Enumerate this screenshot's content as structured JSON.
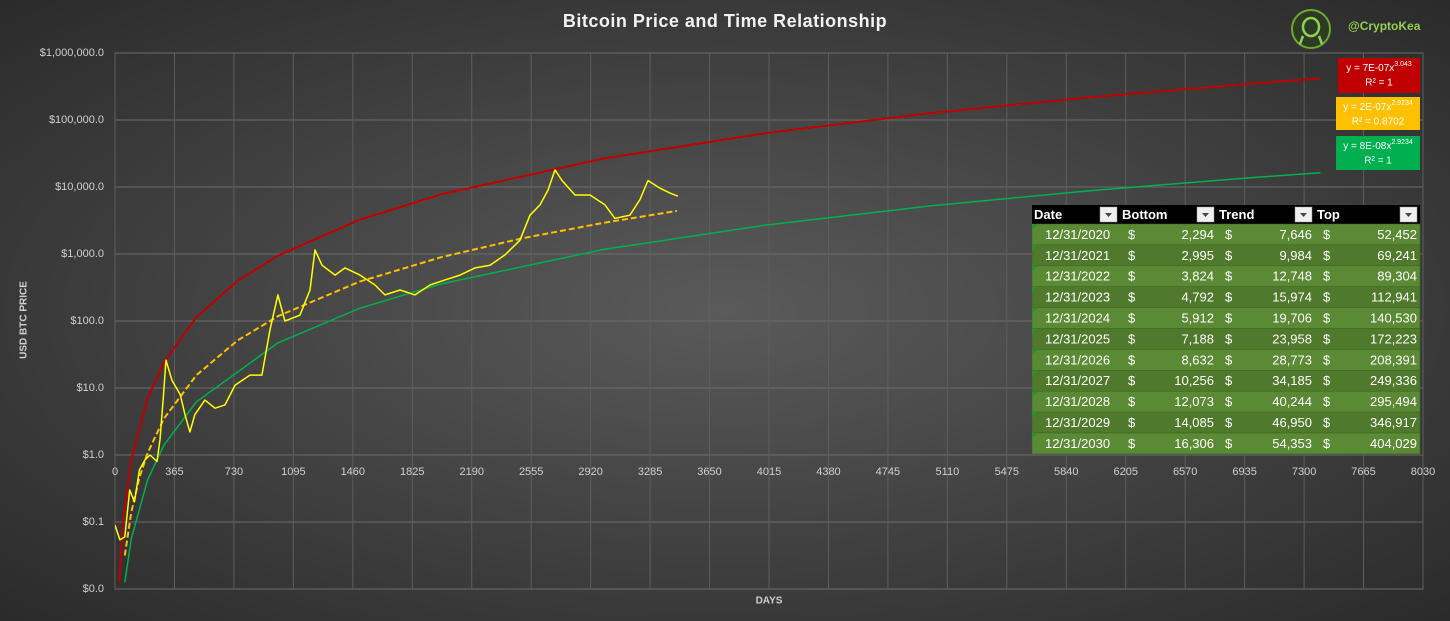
{
  "brand": "@CryptoKea",
  "chart_data": {
    "type": "line",
    "title": "Bitcoin Price and Time Relationship",
    "x_label": "DAYS",
    "y_label": "USD BTC PRICE",
    "log_y": true,
    "grid": true,
    "xlim": [
      0,
      8030
    ],
    "xticks": [
      0,
      365,
      730,
      1095,
      1460,
      1825,
      2190,
      2555,
      2920,
      3285,
      3650,
      4015,
      4380,
      4745,
      5110,
      5475,
      5840,
      6205,
      6570,
      6935,
      7300,
      7665,
      8030
    ],
    "ylim": [
      0.01,
      1000000
    ],
    "yticks": [
      {
        "value": 0.01,
        "label": "$0.0"
      },
      {
        "value": 0.1,
        "label": "$0.1"
      },
      {
        "value": 1,
        "label": "$1.0"
      },
      {
        "value": 10,
        "label": "$10.0"
      },
      {
        "value": 100,
        "label": "$100.0"
      },
      {
        "value": 1000,
        "label": "$1,000.0"
      },
      {
        "value": 10000,
        "label": "$10,000.0"
      },
      {
        "value": 100000,
        "label": "$100,000.0"
      },
      {
        "value": 1000000,
        "label": "$1,000,000.0"
      }
    ],
    "series": [
      {
        "color": "#c00000",
        "dashed": false,
        "width": 2,
        "x": [
          25,
          50,
          100,
          200,
          300,
          500,
          750,
          1000,
          1500,
          2000,
          3000,
          4000,
          5000,
          6000,
          7000,
          7400
        ],
        "values": [
          0.0126,
          0.104,
          0.853,
          7.03,
          24.2,
          114,
          393,
          942,
          3235,
          7764,
          26670,
          63980,
          126200,
          219800,
          351400,
          415800
        ]
      },
      {
        "color": "#00b050",
        "dashed": false,
        "width": 1.5,
        "x": [
          60,
          100,
          200,
          300,
          500,
          1000,
          1500,
          2000,
          3000,
          4000,
          5000,
          6000,
          7000,
          7400
        ],
        "values": [
          0.0126,
          0.0562,
          0.426,
          1.4,
          6.22,
          47.1,
          154,
          357,
          1170,
          2712,
          5210,
          8870,
          13930,
          16360
        ]
      },
      {
        "color": "#ffc000",
        "dashed": true,
        "width": 2,
        "x": [
          60,
          100,
          150,
          200,
          300,
          500,
          750,
          1000,
          1500,
          2000,
          2500,
          3000,
          3450
        ],
        "values": [
          0.0316,
          0.14,
          0.46,
          1.07,
          3.49,
          15.5,
          50.8,
          118,
          386,
          893,
          1714,
          2924,
          4400
        ]
      },
      {
        "color": "#ffff00",
        "dashed": false,
        "width": 1.5,
        "x": [
          0,
          30,
          60,
          90,
          120,
          150,
          185,
          215,
          258,
          276,
          295,
          313,
          350,
          400,
          430,
          460,
          490,
          552,
          614,
          675,
          737,
          829,
          902,
          951,
          1000,
          1043,
          1135,
          1197,
          1228,
          1271,
          1351,
          1412,
          1504,
          1596,
          1657,
          1750,
          1842,
          1934,
          2026,
          2118,
          2210,
          2302,
          2394,
          2486,
          2548,
          2609,
          2658,
          2701,
          2744,
          2824,
          2916,
          3008,
          3069,
          3161,
          3223,
          3272,
          3346,
          3407,
          3456
        ],
        "values": [
          0.09,
          0.054,
          0.06,
          0.3,
          0.2,
          0.6,
          0.85,
          1,
          0.8,
          1.7,
          6.6,
          26,
          13,
          8,
          4,
          2.2,
          4,
          6.6,
          5,
          5.6,
          11,
          15.6,
          15.6,
          73,
          245,
          100,
          122,
          290,
          1150,
          680,
          485,
          620,
          485,
          345,
          245,
          290,
          245,
          345,
          410,
          485,
          620,
          680,
          970,
          1600,
          3800,
          5400,
          9000,
          18000,
          12500,
          7600,
          7600,
          5400,
          3400,
          3800,
          6500,
          12500,
          9600,
          8100,
          7300
        ]
      }
    ],
    "annotations": [
      {
        "equation": "y = 7E-07x",
        "exponent": "3.043",
        "r2": "R² = 1",
        "color": "#c00000"
      },
      {
        "equation": "y = 2E-07x",
        "exponent": "2.9234",
        "r2": "R² = 0.8702",
        "color": "#ffc000"
      },
      {
        "equation": "y = 8E-08x",
        "exponent": "2.9234",
        "r2": "R² = 1",
        "color": "#00b050"
      }
    ]
  },
  "table": {
    "columns": [
      "Date",
      "Bottom",
      "Trend",
      "Top"
    ],
    "currency": "$",
    "rows": [
      [
        "12/31/2020",
        "2,294",
        "7,646",
        "52,452"
      ],
      [
        "12/31/2021",
        "2,995",
        "9,984",
        "69,241"
      ],
      [
        "12/31/2022",
        "3,824",
        "12,748",
        "89,304"
      ],
      [
        "12/31/2023",
        "4,792",
        "15,974",
        "112,941"
      ],
      [
        "12/31/2024",
        "5,912",
        "19,706",
        "140,530"
      ],
      [
        "12/31/2025",
        "7,188",
        "23,958",
        "172,223"
      ],
      [
        "12/31/2026",
        "8,632",
        "28,773",
        "208,391"
      ],
      [
        "12/31/2027",
        "10,256",
        "34,185",
        "249,336"
      ],
      [
        "12/31/2028",
        "12,073",
        "40,244",
        "295,494"
      ],
      [
        "12/31/2029",
        "14,085",
        "46,950",
        "346,917"
      ],
      [
        "12/31/2030",
        "16,306",
        "54,353",
        "404,029"
      ]
    ]
  }
}
